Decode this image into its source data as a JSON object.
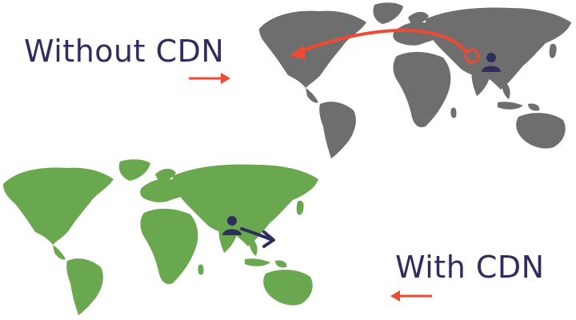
{
  "scenarios": {
    "without": {
      "label": "Without CDN"
    },
    "with": {
      "label": "With CDN"
    }
  },
  "colors": {
    "text": "#2f2d5e",
    "arrow_red": "#ee4a34",
    "map_gray": "#6e6e6e",
    "map_green": "#6aa84f",
    "user_icon": "#2f2d5e"
  },
  "icons": [
    "user-icon",
    "route-arrow",
    "small-arrow"
  ]
}
